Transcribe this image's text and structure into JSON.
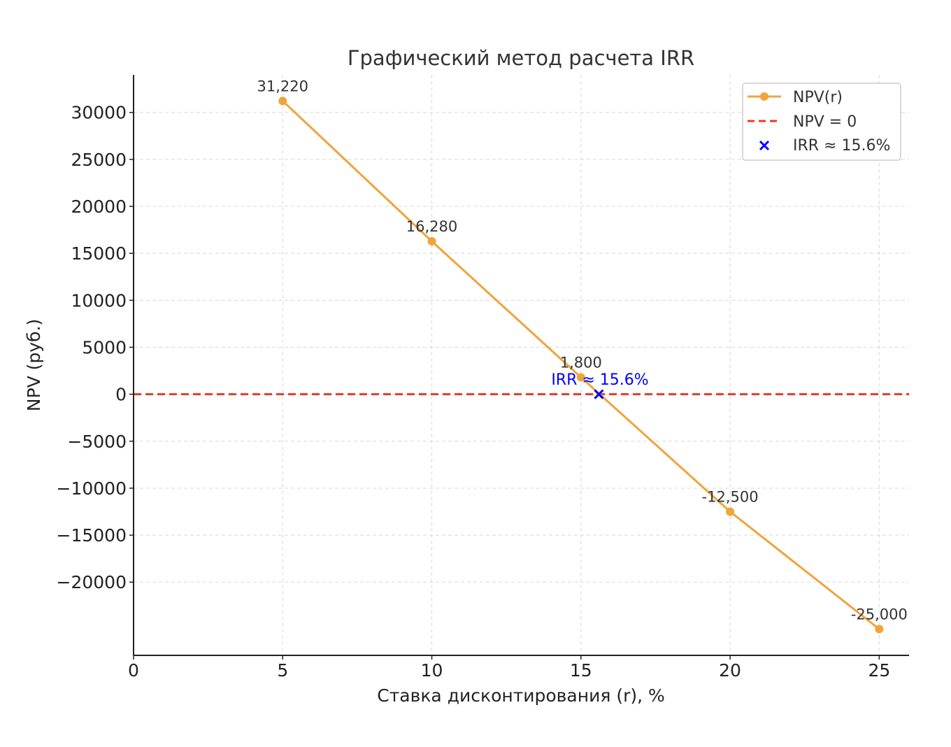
{
  "chart_data": {
    "type": "line",
    "title": "Графический метод расчета IRR",
    "xlabel": "Ставка дисконтирования (r), %",
    "ylabel": "NPV (руб.)",
    "xlim": [
      0,
      26
    ],
    "ylim": [
      -27800,
      34000
    ],
    "xticks": [
      0,
      5,
      10,
      15,
      20,
      25
    ],
    "yticks": [
      -20000,
      -15000,
      -10000,
      -5000,
      0,
      5000,
      10000,
      15000,
      20000,
      25000,
      30000
    ],
    "ytick_labels": [
      "−20000",
      "−15000",
      "−10000",
      "−5000",
      "0",
      "5000",
      "10000",
      "15000",
      "20000",
      "25000",
      "30000"
    ],
    "grid": true,
    "legend_position": "top-right",
    "series": [
      {
        "name": "NPV(r)",
        "color": "#f0a43a",
        "marker": "circle",
        "x": [
          5,
          10,
          15,
          20,
          25
        ],
        "y": [
          31220,
          16280,
          1800,
          -12500,
          -25000
        ],
        "data_labels": [
          "31,220",
          "16,280",
          "1,800",
          "-12,500",
          "-25,000"
        ]
      },
      {
        "name": "NPV = 0",
        "color": "#e8392b",
        "style": "dashed",
        "y": 0
      },
      {
        "name": "IRR ≈ 15.6%",
        "color": "#0000ff",
        "marker": "x",
        "x": 15.6,
        "y": 0
      }
    ],
    "annotations": [
      {
        "text": "IRR ≈ 15.6%",
        "x": 15.6,
        "y": 0,
        "color": "#0000ff"
      }
    ]
  }
}
